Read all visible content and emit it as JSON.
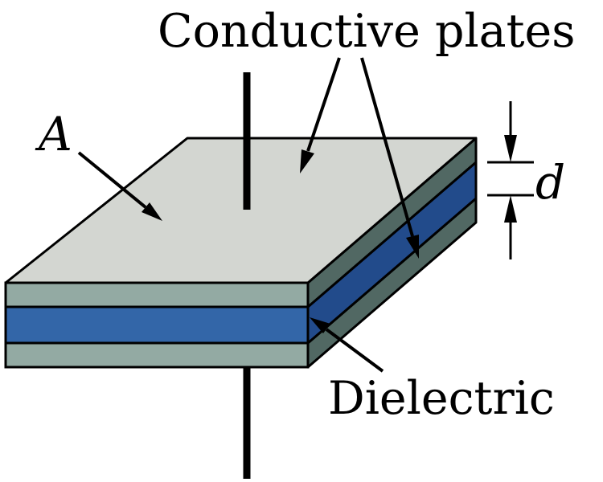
{
  "labels": {
    "conductive_plates": "Conductive plates",
    "area": "A",
    "distance": "d",
    "dielectric": "Dielectric"
  },
  "colors": {
    "plate_top": "#d3d6d1",
    "plate_side_front": "#93aaa3",
    "plate_side_right": "#516863",
    "dielectric_front": "#3366a8",
    "dielectric_right": "#224b8b",
    "stroke": "#000000"
  }
}
